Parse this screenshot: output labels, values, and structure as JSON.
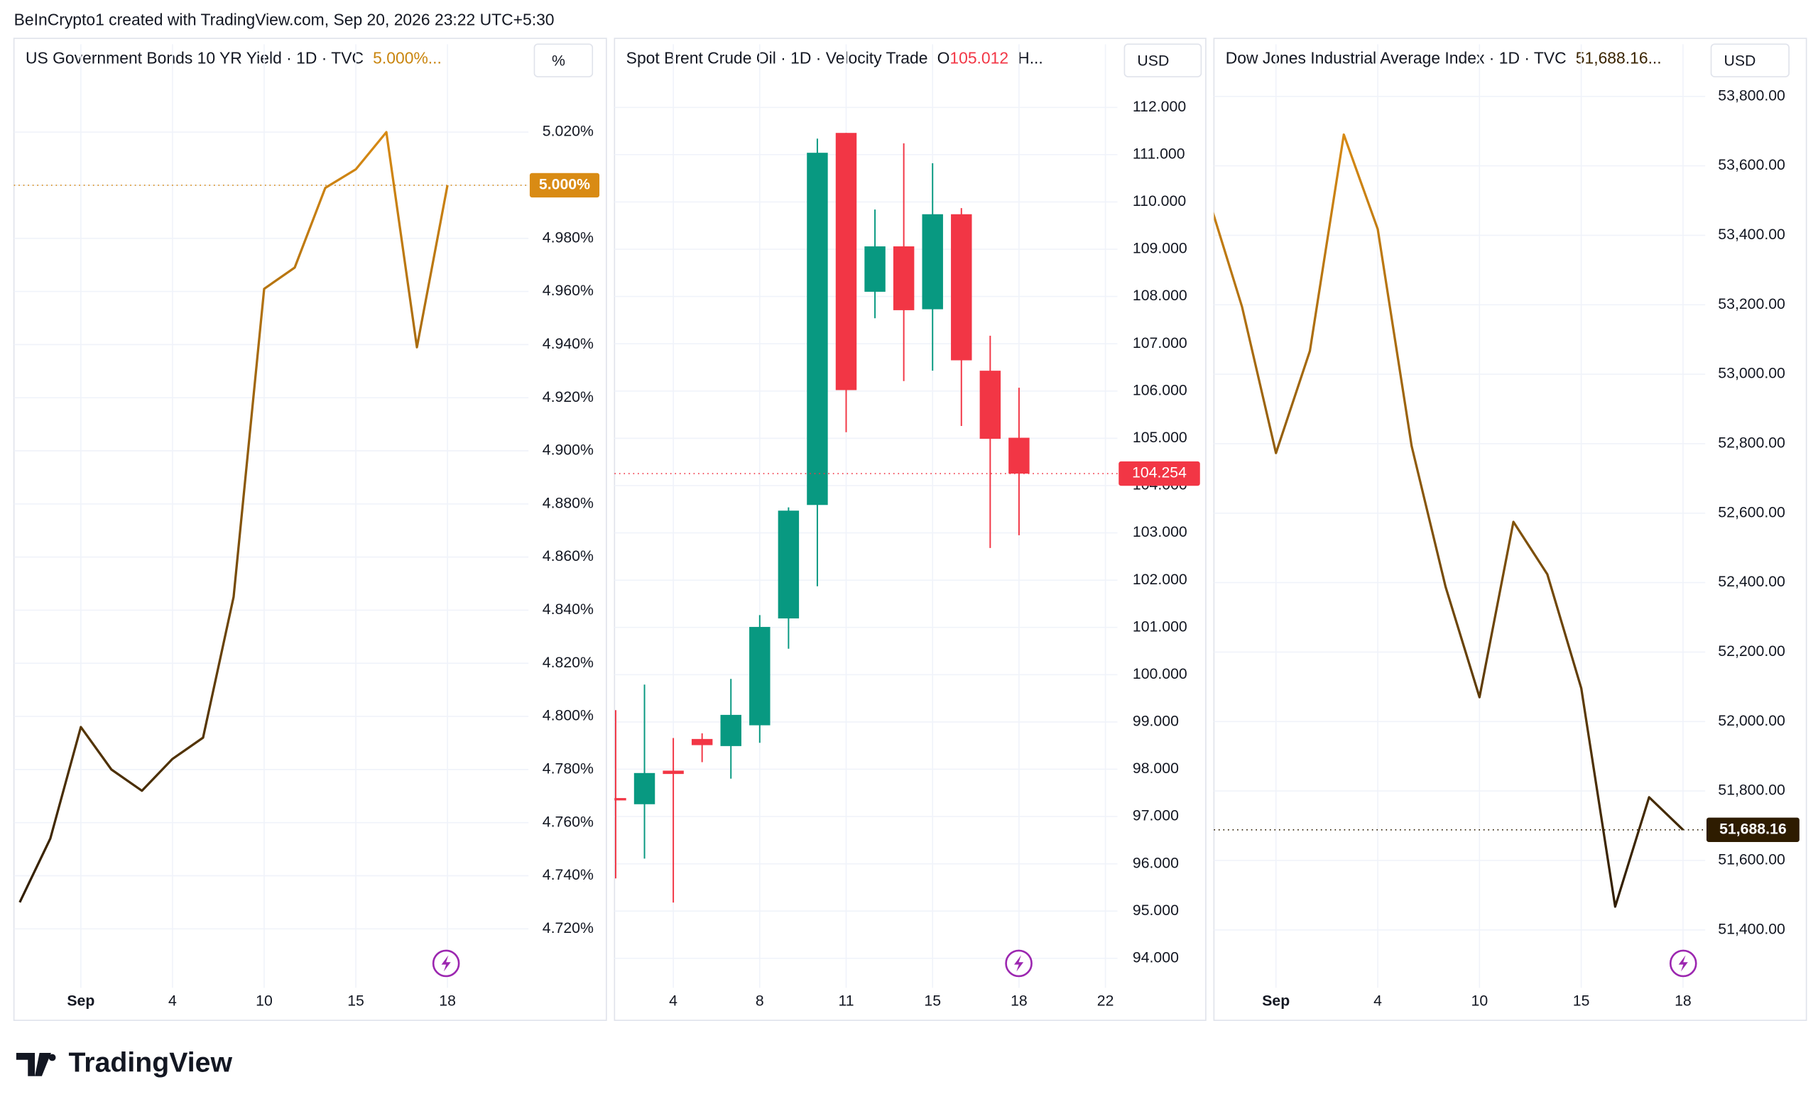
{
  "header": {
    "attribution": "BeInCrypto1 created with TradingView.com, Sep 20, 2026 23:22 UTC+5:30"
  },
  "footer": {
    "brand": "TradingView"
  },
  "chart_data": [
    {
      "type": "line",
      "title": "US Government Bonds 10 YR Yield · 1D · TVC",
      "header_value": "5.000%...",
      "unit": "%",
      "categories": [
        null,
        null,
        "Sep",
        null,
        null,
        "4",
        null,
        null,
        "10",
        null,
        null,
        "15",
        null,
        null,
        "18"
      ],
      "values": [
        4.73,
        4.754,
        4.796,
        4.78,
        4.772,
        4.784,
        4.792,
        4.845,
        4.961,
        4.969,
        4.999,
        5.006,
        5.02,
        4.939,
        5.0
      ],
      "last_label": "5.000%",
      "color": "#d98b14",
      "color_low": "#2e1c00",
      "ylim": [
        4.7,
        5.04
      ],
      "yticks": [
        {
          "value": 4.72,
          "label": "4.720%"
        },
        {
          "value": 4.74,
          "label": "4.740%"
        },
        {
          "value": 4.76,
          "label": "4.760%"
        },
        {
          "value": 4.78,
          "label": "4.780%"
        },
        {
          "value": 4.8,
          "label": "4.800%"
        },
        {
          "value": 4.82,
          "label": "4.820%"
        },
        {
          "value": 4.84,
          "label": "4.840%"
        },
        {
          "value": 4.86,
          "label": "4.860%"
        },
        {
          "value": 4.88,
          "label": "4.880%"
        },
        {
          "value": 4.9,
          "label": "4.900%"
        },
        {
          "value": 4.92,
          "label": "4.920%"
        },
        {
          "value": 4.94,
          "label": "4.940%"
        },
        {
          "value": 4.96,
          "label": "4.960%"
        },
        {
          "value": 4.98,
          "label": "4.980%"
        },
        {
          "value": 5.0,
          "label": "5.000%"
        },
        {
          "value": 5.02,
          "label": "5.020%"
        }
      ],
      "grid": true
    },
    {
      "type": "candlestick",
      "title": "Spot Brent Crude Oil · 1D · Velocity Trade",
      "open_prefix": "O",
      "header_suffix": "H...",
      "unit": "USD",
      "categories": [
        null,
        null,
        "4",
        null,
        null,
        "8",
        null,
        null,
        "11",
        null,
        null,
        "15",
        null,
        null,
        "18",
        null,
        null,
        "22"
      ],
      "open": [
        97.39,
        97.26,
        97.97,
        98.64,
        98.49,
        98.93,
        101.19,
        103.59,
        111.46,
        108.1,
        109.06,
        107.73,
        109.74,
        106.43,
        105.012,
        null,
        null,
        null
      ],
      "high": [
        99.25,
        99.79,
        98.66,
        98.76,
        99.91,
        101.26,
        103.54,
        111.34,
        111.46,
        109.84,
        111.24,
        110.82,
        109.87,
        107.17,
        106.07,
        null,
        null,
        null
      ],
      "low": [
        95.69,
        96.11,
        95.18,
        98.15,
        97.8,
        98.56,
        100.55,
        101.87,
        105.13,
        107.54,
        106.21,
        106.43,
        105.26,
        102.68,
        102.95,
        null,
        null,
        null
      ],
      "close": [
        97.37,
        97.92,
        97.9,
        98.51,
        99.15,
        101.01,
        103.47,
        111.04,
        106.02,
        109.06,
        107.71,
        109.74,
        106.65,
        104.99,
        104.254,
        null,
        null,
        null
      ],
      "up_color": "#089981",
      "down_color": "#f23645",
      "ylim": [
        93.5,
        112.6
      ],
      "yticks": [
        {
          "value": 94,
          "label": "94.000"
        },
        {
          "value": 95,
          "label": "95.000"
        },
        {
          "value": 96,
          "label": "96.000"
        },
        {
          "value": 97,
          "label": "97.000"
        },
        {
          "value": 98,
          "label": "98.000"
        },
        {
          "value": 99,
          "label": "99.000"
        },
        {
          "value": 100,
          "label": "100.000"
        },
        {
          "value": 101,
          "label": "101.000"
        },
        {
          "value": 102,
          "label": "102.000"
        },
        {
          "value": 103,
          "label": "103.000"
        },
        {
          "value": 104,
          "label": "104.000"
        },
        {
          "value": 105,
          "label": "105.000"
        },
        {
          "value": 106,
          "label": "106.000"
        },
        {
          "value": 107,
          "label": "107.000"
        },
        {
          "value": 108,
          "label": "108.000"
        },
        {
          "value": 109,
          "label": "109.000"
        },
        {
          "value": 110,
          "label": "110.000"
        },
        {
          "value": 111,
          "label": "111.000"
        },
        {
          "value": 112,
          "label": "112.000"
        }
      ],
      "grid": true
    },
    {
      "type": "line",
      "title": "Dow Jones Industrial Average Index · 1D · TVC",
      "header_value": "51,688.16...",
      "unit": "USD",
      "categories": [
        null,
        null,
        "Sep",
        null,
        null,
        "4",
        null,
        null,
        "10",
        null,
        null,
        "15",
        null,
        null,
        "18"
      ],
      "values": [
        53510,
        53194,
        52773,
        53067,
        53690,
        53418,
        52793,
        52388,
        52070,
        52575,
        52424,
        52096,
        51467,
        51782,
        51688.16
      ],
      "last_label": "51,688.16",
      "color": "#d98b14",
      "color_low": "#2e1c00",
      "ylim": [
        51250,
        53850
      ],
      "yticks": [
        {
          "value": 51400,
          "label": "51,400.00"
        },
        {
          "value": 51600,
          "label": "51,600.00"
        },
        {
          "value": 51800,
          "label": "51,800.00"
        },
        {
          "value": 52000,
          "label": "52,000.00"
        },
        {
          "value": 52200,
          "label": "52,200.00"
        },
        {
          "value": 52400,
          "label": "52,400.00"
        },
        {
          "value": 52600,
          "label": "52,600.00"
        },
        {
          "value": 52800,
          "label": "52,800.00"
        },
        {
          "value": 53000,
          "label": "53,000.00"
        },
        {
          "value": 53200,
          "label": "53,200.00"
        },
        {
          "value": 53400,
          "label": "53,400.00"
        },
        {
          "value": 53600,
          "label": "53,600.00"
        },
        {
          "value": 53800,
          "label": "53,800.00"
        }
      ],
      "grid": true
    }
  ]
}
